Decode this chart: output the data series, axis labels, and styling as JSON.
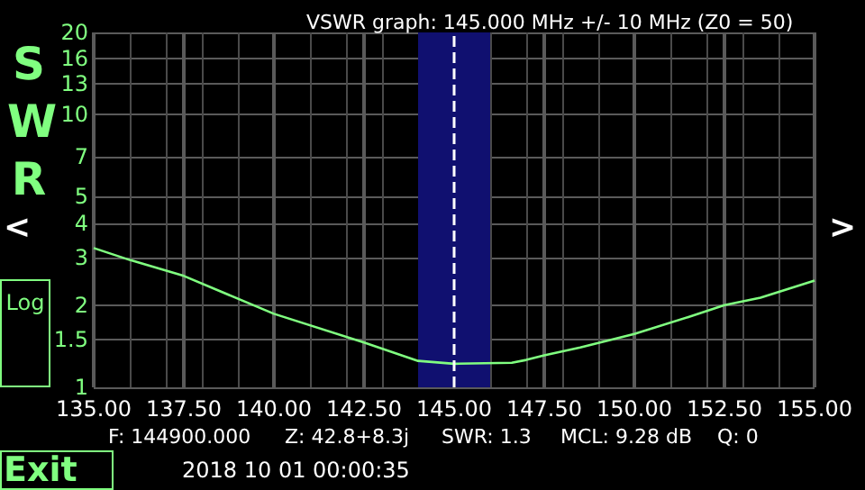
{
  "chart_data": {
    "type": "line",
    "title": "VSWR graph: 145.000 MHz +/- 10 MHz (Z0 = 50)",
    "ylabel": "SWR",
    "x": [
      135,
      136,
      137.5,
      140,
      142.5,
      144,
      145,
      146.6,
      147,
      147.5,
      148.5,
      150,
      151.5,
      152.5,
      153.5,
      155
    ],
    "series": [
      {
        "color": "#80ff80",
        "values": [
          3.24,
          2.93,
          2.56,
          1.86,
          1.46,
          1.25,
          1.22,
          1.23,
          1.26,
          1.31,
          1.4,
          1.57,
          1.81,
          2.0,
          2.13,
          2.46
        ]
      }
    ],
    "xlim": [
      135,
      155
    ],
    "xticks": [
      {
        "value": 135,
        "label": "135.00"
      },
      {
        "value": 137.5,
        "label": "137.50"
      },
      {
        "value": 140,
        "label": "140.00"
      },
      {
        "value": 142.5,
        "label": "142.50"
      },
      {
        "value": 145,
        "label": "145.00"
      },
      {
        "value": 147.5,
        "label": "147.50"
      },
      {
        "value": 150,
        "label": "150.00"
      },
      {
        "value": 152.5,
        "label": "152.50"
      },
      {
        "value": 155,
        "label": "155.00"
      }
    ],
    "ylim": [
      1,
      20
    ],
    "yticks": [
      1,
      1.5,
      2,
      3,
      4,
      5,
      7,
      10,
      13,
      16,
      20
    ],
    "log": "y",
    "grid": true,
    "marker": "none",
    "line_style": "solid",
    "ref_lines": [
      {
        "axis": "x",
        "value": 145,
        "color": "#ffffff",
        "line_style": "dashed"
      }
    ],
    "bands": [
      {
        "axis": "x",
        "from": 144,
        "to": 146,
        "color": "#101070"
      }
    ],
    "annotations": [
      "F: 144900.000",
      "Z: 42.8+8.3j",
      "SWR: 1.3",
      "MCL: 9.28 dB",
      "Q: 0",
      "2018 10 01 00:00:35",
      "Log",
      "Exit",
      "<",
      ">"
    ]
  }
}
